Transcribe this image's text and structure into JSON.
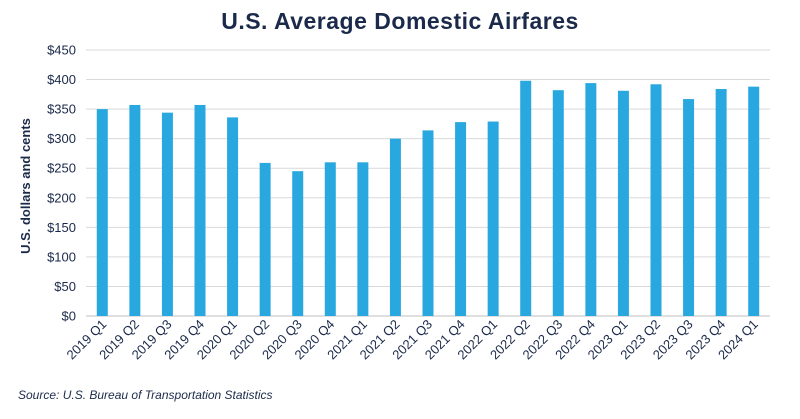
{
  "chart_data": {
    "type": "bar",
    "title": "U.S. Average Domestic Airfares",
    "xlabel": "",
    "ylabel": "U.S. dollars and cents",
    "ylim": [
      0,
      450
    ],
    "yticks": [
      "$0",
      "$50",
      "$100",
      "$150",
      "$200",
      "$250",
      "$300",
      "$350",
      "$400",
      "$450"
    ],
    "categories": [
      "2019 Q1",
      "2019 Q2",
      "2019 Q3",
      "2019 Q4",
      "2020 Q1",
      "2020 Q2",
      "2020 Q3",
      "2020 Q4",
      "2021 Q1",
      "2021 Q2",
      "2021 Q3",
      "2021 Q4",
      "2022 Q1",
      "2022 Q2",
      "2022 Q3",
      "2022 Q4",
      "2023 Q1",
      "2023 Q2",
      "2023 Q3",
      "2023 Q4",
      "2024 Q1"
    ],
    "values": [
      350,
      357,
      344,
      357,
      336,
      259,
      245,
      260,
      260,
      300,
      314,
      328,
      329,
      398,
      382,
      394,
      381,
      392,
      367,
      384,
      388
    ],
    "grid": true,
    "colors": {
      "bar": "#29a8e0",
      "text": "#1b2a4a",
      "grid": "#d9d9d9"
    }
  },
  "source": "Source: U.S. Bureau of Transportation Statistics"
}
